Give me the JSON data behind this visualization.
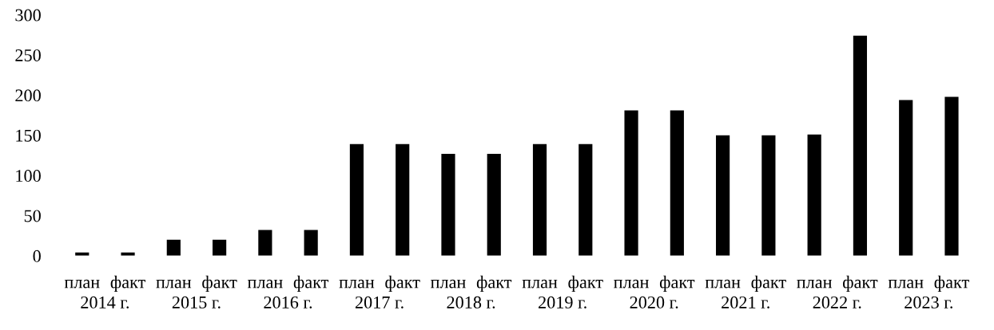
{
  "chart_data": {
    "type": "bar",
    "categories": [
      "план",
      "факт",
      "план",
      "факт",
      "план",
      "факт",
      "план",
      "факт",
      "план",
      "факт",
      "план",
      "факт",
      "план",
      "факт",
      "план",
      "факт",
      "план",
      "факт",
      "план",
      "факт"
    ],
    "values": [
      4,
      4,
      20,
      20,
      32,
      32,
      139,
      139,
      127,
      127,
      139,
      139,
      181,
      181,
      150,
      150,
      151,
      274,
      194,
      198
    ],
    "color": "#000000",
    "ylim": [
      0,
      300
    ],
    "yticks": [
      0,
      50,
      100,
      150,
      200,
      250,
      300
    ],
    "annotations": [
      "2014 г.",
      "2015 г.",
      "2016 г.",
      "2017 г.",
      "2018 г.",
      "2019 г.",
      "2020 г.",
      "2021 г.",
      "2022 г.",
      "2023 г."
    ]
  }
}
